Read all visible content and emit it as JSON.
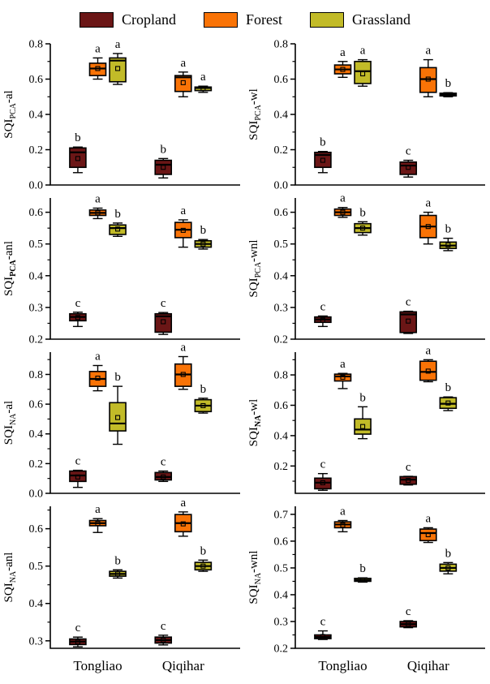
{
  "legend": {
    "items": [
      {
        "label": "Cropland",
        "color": "#6B1616"
      },
      {
        "label": "Forest",
        "color": "#F97306"
      },
      {
        "label": "Grassland",
        "color": "#C2BB28"
      }
    ]
  },
  "colors": {
    "cropland": "#6B1616",
    "forest": "#F97306",
    "grassland": "#C2BB28",
    "box_border": "#000000",
    "axis": "#000000",
    "background": "#FFFFFF"
  },
  "x_categories": [
    "Tongliao",
    "Qiqihar"
  ],
  "chart_data": [
    {
      "type": "box",
      "id": "sqi-pca-al",
      "ylabel": {
        "prefix": "SQI",
        "sub": "PCA",
        "sub_bold": false,
        "suffix": "-al"
      },
      "ylim": [
        0.0,
        0.8
      ],
      "yticks": [
        0.0,
        0.2,
        0.4,
        0.6,
        0.8
      ],
      "show_x_labels": false,
      "groups": [
        "Tongliao",
        "Qiqihar"
      ],
      "series_order": [
        "Cropland",
        "Forest",
        "Grassland"
      ],
      "boxes": [
        {
          "group": "Tongliao",
          "series": "Cropland",
          "whisker_low": 0.07,
          "q1": 0.1,
          "median": 0.185,
          "q3": 0.21,
          "whisker_high": 0.215,
          "mean": 0.15,
          "letter": "b"
        },
        {
          "group": "Tongliao",
          "series": "Forest",
          "whisker_low": 0.6,
          "q1": 0.62,
          "median": 0.66,
          "q3": 0.69,
          "whisker_high": 0.72,
          "mean": 0.66,
          "letter": "a"
        },
        {
          "group": "Tongliao",
          "series": "Grassland",
          "whisker_low": 0.57,
          "q1": 0.585,
          "median": 0.705,
          "q3": 0.72,
          "whisker_high": 0.745,
          "mean": 0.66,
          "letter": "a"
        },
        {
          "group": "Qiqihar",
          "series": "Cropland",
          "whisker_low": 0.04,
          "q1": 0.06,
          "median": 0.115,
          "q3": 0.14,
          "whisker_high": 0.15,
          "mean": 0.1,
          "letter": "b"
        },
        {
          "group": "Qiqihar",
          "series": "Forest",
          "whisker_low": 0.5,
          "q1": 0.53,
          "median": 0.61,
          "q3": 0.62,
          "whisker_high": 0.64,
          "mean": 0.58,
          "letter": "a"
        },
        {
          "group": "Qiqihar",
          "series": "Grassland",
          "whisker_low": 0.525,
          "q1": 0.535,
          "median": 0.55,
          "q3": 0.555,
          "whisker_high": 0.56,
          "mean": 0.545,
          "letter": "a"
        }
      ]
    },
    {
      "type": "box",
      "id": "sqi-pca-wl",
      "ylabel": {
        "prefix": "SQI",
        "sub": "PCA",
        "sub_bold": false,
        "suffix": "-wl"
      },
      "ylim": [
        0.0,
        0.8
      ],
      "yticks": [
        0.0,
        0.2,
        0.4,
        0.6,
        0.8
      ],
      "show_x_labels": false,
      "groups": [
        "Tongliao",
        "Qiqihar"
      ],
      "series_order": [
        "Cropland",
        "Forest",
        "Grassland"
      ],
      "boxes": [
        {
          "group": "Tongliao",
          "series": "Cropland",
          "whisker_low": 0.07,
          "q1": 0.1,
          "median": 0.17,
          "q3": 0.185,
          "whisker_high": 0.19,
          "mean": 0.14,
          "letter": "b"
        },
        {
          "group": "Tongliao",
          "series": "Forest",
          "whisker_low": 0.61,
          "q1": 0.63,
          "median": 0.655,
          "q3": 0.68,
          "whisker_high": 0.7,
          "mean": 0.655,
          "letter": "a"
        },
        {
          "group": "Tongliao",
          "series": "Grassland",
          "whisker_low": 0.56,
          "q1": 0.575,
          "median": 0.645,
          "q3": 0.7,
          "whisker_high": 0.71,
          "mean": 0.63,
          "letter": "a"
        },
        {
          "group": "Qiqihar",
          "series": "Cropland",
          "whisker_low": 0.045,
          "q1": 0.06,
          "median": 0.11,
          "q3": 0.13,
          "whisker_high": 0.14,
          "mean": 0.1,
          "letter": "c"
        },
        {
          "group": "Qiqihar",
          "series": "Forest",
          "whisker_low": 0.5,
          "q1": 0.525,
          "median": 0.6,
          "q3": 0.665,
          "whisker_high": 0.71,
          "mean": 0.6,
          "letter": "a"
        },
        {
          "group": "Qiqihar",
          "series": "Grassland",
          "whisker_low": 0.5,
          "q1": 0.505,
          "median": 0.513,
          "q3": 0.52,
          "whisker_high": 0.523,
          "mean": 0.512,
          "letter": "b"
        }
      ]
    },
    {
      "type": "box",
      "id": "sqi-pca-anl",
      "ylabel": {
        "prefix": "SQI",
        "sub": "PCA",
        "sub_bold": true,
        "suffix": "-anl"
      },
      "ylim": [
        0.2,
        0.645
      ],
      "yticks": [
        0.2,
        0.3,
        0.4,
        0.5,
        0.6
      ],
      "show_x_labels": false,
      "groups": [
        "Tongliao",
        "Qiqihar"
      ],
      "series_order": [
        "Cropland",
        "Forest",
        "Grassland"
      ],
      "boxes": [
        {
          "group": "Tongliao",
          "series": "Cropland",
          "whisker_low": 0.24,
          "q1": 0.258,
          "median": 0.27,
          "q3": 0.28,
          "whisker_high": 0.285,
          "mean": 0.268,
          "letter": "c"
        },
        {
          "group": "Tongliao",
          "series": "Forest",
          "whisker_low": 0.58,
          "q1": 0.59,
          "median": 0.598,
          "q3": 0.607,
          "whisker_high": 0.613,
          "mean": 0.598,
          "letter": "a"
        },
        {
          "group": "Tongliao",
          "series": "Grassland",
          "whisker_low": 0.524,
          "q1": 0.53,
          "median": 0.55,
          "q3": 0.56,
          "whisker_high": 0.566,
          "mean": 0.547,
          "letter": "b"
        },
        {
          "group": "Qiqihar",
          "series": "Cropland",
          "whisker_low": 0.215,
          "q1": 0.222,
          "median": 0.272,
          "q3": 0.28,
          "whisker_high": 0.284,
          "mean": 0.255,
          "letter": "c"
        },
        {
          "group": "Qiqihar",
          "series": "Forest",
          "whisker_low": 0.49,
          "q1": 0.52,
          "median": 0.545,
          "q3": 0.568,
          "whisker_high": 0.576,
          "mean": 0.543,
          "letter": "a"
        },
        {
          "group": "Qiqihar",
          "series": "Grassland",
          "whisker_low": 0.484,
          "q1": 0.49,
          "median": 0.5,
          "q3": 0.51,
          "whisker_high": 0.514,
          "mean": 0.5,
          "letter": "b"
        }
      ]
    },
    {
      "type": "box",
      "id": "sqi-pca-wnl",
      "ylabel": {
        "prefix": "SQI",
        "sub": "PCA",
        "sub_bold": false,
        "suffix": "-wnl"
      },
      "ylim": [
        0.2,
        0.645
      ],
      "yticks": [
        0.2,
        0.3,
        0.4,
        0.5,
        0.6
      ],
      "show_x_labels": false,
      "groups": [
        "Tongliao",
        "Qiqihar"
      ],
      "series_order": [
        "Cropland",
        "Forest",
        "Grassland"
      ],
      "boxes": [
        {
          "group": "Tongliao",
          "series": "Cropland",
          "whisker_low": 0.24,
          "q1": 0.253,
          "median": 0.262,
          "q3": 0.27,
          "whisker_high": 0.273,
          "mean": 0.26,
          "letter": "c"
        },
        {
          "group": "Tongliao",
          "series": "Forest",
          "whisker_low": 0.584,
          "q1": 0.59,
          "median": 0.6,
          "q3": 0.61,
          "whisker_high": 0.615,
          "mean": 0.6,
          "letter": "a"
        },
        {
          "group": "Tongliao",
          "series": "Grassland",
          "whisker_low": 0.528,
          "q1": 0.536,
          "median": 0.55,
          "q3": 0.564,
          "whisker_high": 0.57,
          "mean": 0.55,
          "letter": "b"
        },
        {
          "group": "Qiqihar",
          "series": "Cropland",
          "whisker_low": 0.218,
          "q1": 0.221,
          "median": 0.278,
          "q3": 0.286,
          "whisker_high": 0.288,
          "mean": 0.257,
          "letter": "c"
        },
        {
          "group": "Qiqihar",
          "series": "Forest",
          "whisker_low": 0.5,
          "q1": 0.52,
          "median": 0.555,
          "q3": 0.59,
          "whisker_high": 0.6,
          "mean": 0.555,
          "letter": "a"
        },
        {
          "group": "Qiqihar",
          "series": "Grassland",
          "whisker_low": 0.479,
          "q1": 0.486,
          "median": 0.495,
          "q3": 0.506,
          "whisker_high": 0.518,
          "mean": 0.497,
          "letter": "b"
        }
      ]
    },
    {
      "type": "box",
      "id": "sqi-na-al",
      "ylabel": {
        "prefix": "SQI",
        "sub": "NA",
        "sub_bold": false,
        "suffix": "-al"
      },
      "ylim": [
        0.0,
        0.95
      ],
      "yticks": [
        0.0,
        0.2,
        0.4,
        0.6,
        0.8
      ],
      "show_x_labels": false,
      "groups": [
        "Tongliao",
        "Qiqihar"
      ],
      "series_order": [
        "Cropland",
        "Forest",
        "Grassland"
      ],
      "boxes": [
        {
          "group": "Tongliao",
          "series": "Cropland",
          "whisker_low": 0.04,
          "q1": 0.08,
          "median": 0.12,
          "q3": 0.15,
          "whisker_high": 0.155,
          "mean": 0.11,
          "letter": "c"
        },
        {
          "group": "Tongliao",
          "series": "Forest",
          "whisker_low": 0.69,
          "q1": 0.72,
          "median": 0.77,
          "q3": 0.82,
          "whisker_high": 0.86,
          "mean": 0.775,
          "letter": "a"
        },
        {
          "group": "Tongliao",
          "series": "Grassland",
          "whisker_low": 0.33,
          "q1": 0.42,
          "median": 0.47,
          "q3": 0.61,
          "whisker_high": 0.72,
          "mean": 0.51,
          "letter": "b"
        },
        {
          "group": "Qiqihar",
          "series": "Cropland",
          "whisker_low": 0.08,
          "q1": 0.09,
          "median": 0.11,
          "q3": 0.14,
          "whisker_high": 0.15,
          "mean": 0.11,
          "letter": "c"
        },
        {
          "group": "Qiqihar",
          "series": "Forest",
          "whisker_low": 0.7,
          "q1": 0.72,
          "median": 0.8,
          "q3": 0.87,
          "whisker_high": 0.92,
          "mean": 0.8,
          "letter": "a"
        },
        {
          "group": "Qiqihar",
          "series": "Grassland",
          "whisker_low": 0.54,
          "q1": 0.55,
          "median": 0.59,
          "q3": 0.63,
          "whisker_high": 0.64,
          "mean": 0.59,
          "letter": "b"
        }
      ]
    },
    {
      "type": "box",
      "id": "sqi-na-wl",
      "ylabel": {
        "prefix": "SQI",
        "sub": "NA",
        "sub_bold": true,
        "suffix": "-wl"
      },
      "ylim": [
        0.02,
        0.95
      ],
      "yticks": [
        0.2,
        0.4,
        0.6,
        0.8
      ],
      "show_x_labels": false,
      "groups": [
        "Tongliao",
        "Qiqihar"
      ],
      "series_order": [
        "Cropland",
        "Forest",
        "Grassland"
      ],
      "boxes": [
        {
          "group": "Tongliao",
          "series": "Cropland",
          "whisker_low": 0.04,
          "q1": 0.05,
          "median": 0.09,
          "q3": 0.12,
          "whisker_high": 0.15,
          "mean": 0.09,
          "letter": "c"
        },
        {
          "group": "Tongliao",
          "series": "Forest",
          "whisker_low": 0.71,
          "q1": 0.76,
          "median": 0.79,
          "q3": 0.805,
          "whisker_high": 0.81,
          "mean": 0.785,
          "letter": "a"
        },
        {
          "group": "Tongliao",
          "series": "Grassland",
          "whisker_low": 0.38,
          "q1": 0.41,
          "median": 0.44,
          "q3": 0.51,
          "whisker_high": 0.59,
          "mean": 0.46,
          "letter": "b"
        },
        {
          "group": "Qiqihar",
          "series": "Cropland",
          "whisker_low": 0.075,
          "q1": 0.08,
          "median": 0.11,
          "q3": 0.13,
          "whisker_high": 0.132,
          "mean": 0.105,
          "letter": "c"
        },
        {
          "group": "Qiqihar",
          "series": "Forest",
          "whisker_low": 0.755,
          "q1": 0.765,
          "median": 0.82,
          "q3": 0.89,
          "whisker_high": 0.9,
          "mean": 0.825,
          "letter": "a"
        },
        {
          "group": "Qiqihar",
          "series": "Grassland",
          "whisker_low": 0.565,
          "q1": 0.58,
          "median": 0.61,
          "q3": 0.65,
          "whisker_high": 0.655,
          "mean": 0.615,
          "letter": "b"
        }
      ]
    },
    {
      "type": "box",
      "id": "sqi-na-anl",
      "ylabel": {
        "prefix": "SQI",
        "sub": "NA",
        "sub_bold": false,
        "suffix": "-anl"
      },
      "ylim": [
        0.28,
        0.66
      ],
      "yticks": [
        0.3,
        0.4,
        0.5,
        0.6
      ],
      "show_x_labels": true,
      "groups": [
        "Tongliao",
        "Qiqihar"
      ],
      "series_order": [
        "Cropland",
        "Forest",
        "Grassland"
      ],
      "boxes": [
        {
          "group": "Tongliao",
          "series": "Cropland",
          "whisker_low": 0.284,
          "q1": 0.29,
          "median": 0.298,
          "q3": 0.305,
          "whisker_high": 0.31,
          "mean": 0.297,
          "letter": "c"
        },
        {
          "group": "Tongliao",
          "series": "Forest",
          "whisker_low": 0.59,
          "q1": 0.608,
          "median": 0.615,
          "q3": 0.622,
          "whisker_high": 0.627,
          "mean": 0.614,
          "letter": "a"
        },
        {
          "group": "Tongliao",
          "series": "Grassland",
          "whisker_low": 0.468,
          "q1": 0.473,
          "median": 0.479,
          "q3": 0.486,
          "whisker_high": 0.49,
          "mean": 0.479,
          "letter": "b"
        },
        {
          "group": "Qiqihar",
          "series": "Cropland",
          "whisker_low": 0.289,
          "q1": 0.294,
          "median": 0.302,
          "q3": 0.31,
          "whisker_high": 0.315,
          "mean": 0.302,
          "letter": "c"
        },
        {
          "group": "Qiqihar",
          "series": "Forest",
          "whisker_low": 0.58,
          "q1": 0.592,
          "median": 0.615,
          "q3": 0.638,
          "whisker_high": 0.645,
          "mean": 0.613,
          "letter": "a"
        },
        {
          "group": "Qiqihar",
          "series": "Grassland",
          "whisker_low": 0.486,
          "q1": 0.49,
          "median": 0.5,
          "q3": 0.51,
          "whisker_high": 0.516,
          "mean": 0.5,
          "letter": "b"
        }
      ]
    },
    {
      "type": "box",
      "id": "sqi-na-wnl",
      "ylabel": {
        "prefix": "SQI",
        "sub": "NA",
        "sub_bold": false,
        "suffix": "-wnl"
      },
      "ylim": [
        0.2,
        0.73
      ],
      "yticks": [
        0.2,
        0.3,
        0.4,
        0.5,
        0.6,
        0.7
      ],
      "show_x_labels": true,
      "groups": [
        "Tongliao",
        "Qiqihar"
      ],
      "series_order": [
        "Cropland",
        "Forest",
        "Grassland"
      ],
      "boxes": [
        {
          "group": "Tongliao",
          "series": "Cropland",
          "whisker_low": 0.233,
          "q1": 0.236,
          "median": 0.242,
          "q3": 0.25,
          "whisker_high": 0.265,
          "mean": 0.244,
          "letter": "c"
        },
        {
          "group": "Tongliao",
          "series": "Forest",
          "whisker_low": 0.635,
          "q1": 0.65,
          "median": 0.662,
          "q3": 0.672,
          "whisker_high": 0.677,
          "mean": 0.66,
          "letter": "a"
        },
        {
          "group": "Tongliao",
          "series": "Grassland",
          "whisker_low": 0.447,
          "q1": 0.45,
          "median": 0.455,
          "q3": 0.461,
          "whisker_high": 0.463,
          "mean": 0.455,
          "letter": "b"
        },
        {
          "group": "Qiqihar",
          "series": "Cropland",
          "whisker_low": 0.277,
          "q1": 0.28,
          "median": 0.29,
          "q3": 0.3,
          "whisker_high": 0.303,
          "mean": 0.29,
          "letter": "c"
        },
        {
          "group": "Qiqihar",
          "series": "Forest",
          "whisker_low": 0.595,
          "q1": 0.602,
          "median": 0.63,
          "q3": 0.645,
          "whisker_high": 0.65,
          "mean": 0.624,
          "letter": "a"
        },
        {
          "group": "Qiqihar",
          "series": "Grassland",
          "whisker_low": 0.478,
          "q1": 0.488,
          "median": 0.5,
          "q3": 0.514,
          "whisker_high": 0.52,
          "mean": 0.5,
          "letter": "b"
        }
      ]
    }
  ]
}
